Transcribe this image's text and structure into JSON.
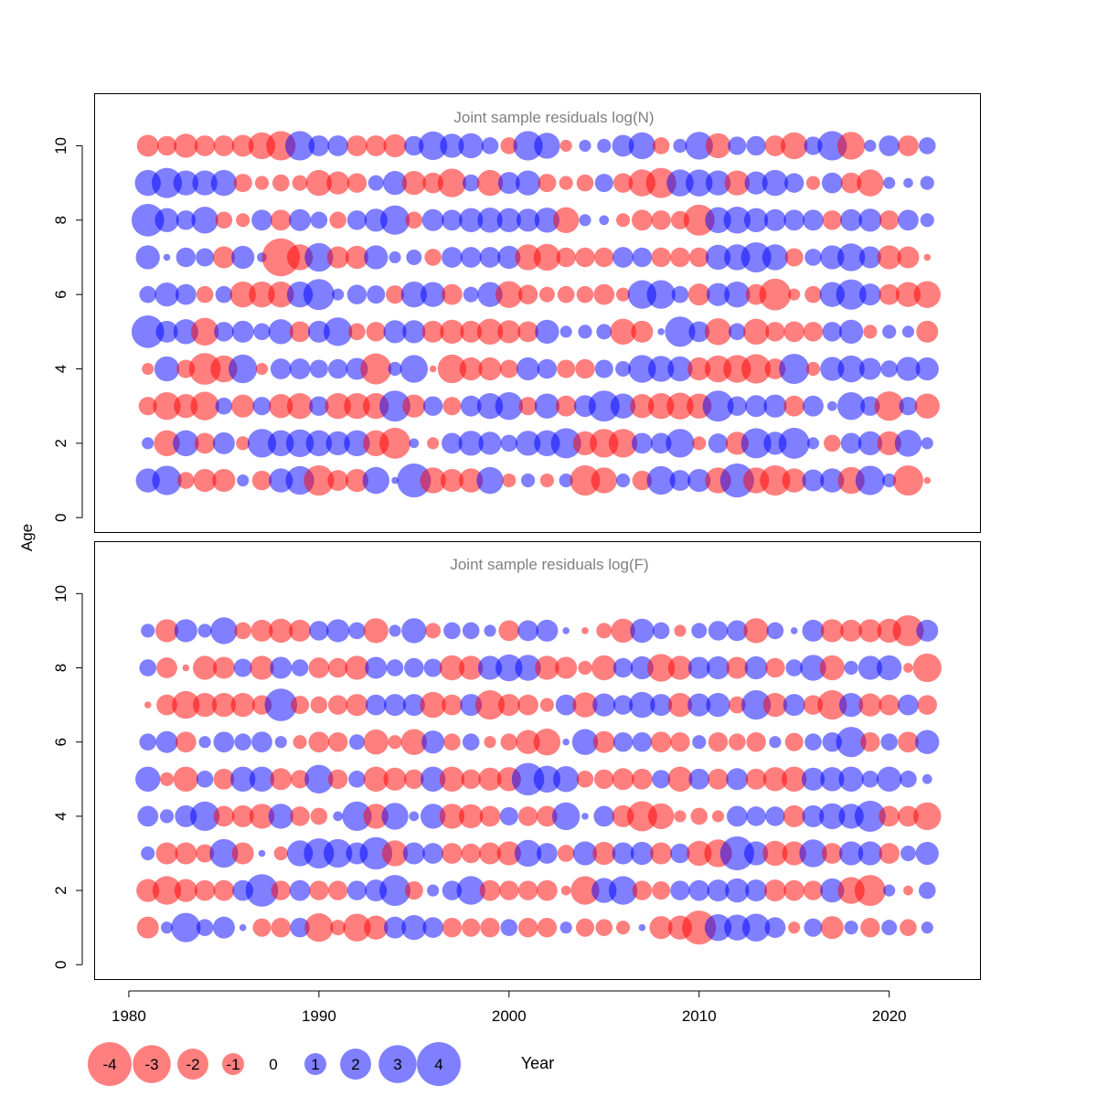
{
  "colors": {
    "positive": "#0000FF",
    "negative": "#FF0000",
    "bubble_alpha": 0.5,
    "panel_title": "#808080",
    "axis": "#000000"
  },
  "chart_data": [
    {
      "type": "scatter",
      "subtype": "bubble",
      "title": "Joint sample residuals log(N)",
      "xlabel": "Year",
      "ylabel": "Age",
      "xlim": [
        1978.2,
        2024.8
      ],
      "ylim": [
        -0.4,
        11.4
      ],
      "yticks": [
        0,
        2,
        4,
        6,
        8,
        10
      ],
      "years": [
        1981,
        1982,
        1983,
        1984,
        1985,
        1986,
        1987,
        1988,
        1989,
        1990,
        1991,
        1992,
        1993,
        1994,
        1995,
        1996,
        1997,
        1998,
        1999,
        2000,
        2001,
        2002,
        2003,
        2004,
        2005,
        2006,
        2007,
        2008,
        2009,
        2010,
        2011,
        2012,
        2013,
        2014,
        2015,
        2016,
        2017,
        2018,
        2019,
        2020,
        2021,
        2022
      ],
      "ages": [
        1,
        2,
        3,
        4,
        5,
        6,
        7,
        8,
        9,
        10
      ],
      "residuals_by_age": {
        "1": [
          1.2,
          1.8,
          -0.6,
          -1.1,
          -1.1,
          0.3,
          -0.8,
          1.2,
          1.7,
          -1.9,
          -0.9,
          -1.1,
          1.5,
          0.1,
          2.4,
          -1.4,
          -1.1,
          -1.2,
          1.5,
          -0.4,
          0.4,
          -0.4,
          0.4,
          -1.9,
          -1.4,
          0.4,
          -0.8,
          1.7,
          0.9,
          1.1,
          -1.4,
          2.4,
          -1.4,
          -1.9,
          -1.2,
          1.0,
          1.2,
          -1.5,
          1.8,
          0.4,
          -1.9,
          -0.1
        ],
        "2": [
          0.3,
          -1.4,
          1.4,
          -0.9,
          1.0,
          -0.4,
          1.7,
          1.4,
          1.6,
          1.4,
          1.2,
          1.4,
          -1.4,
          -2.0,
          0.2,
          -0.3,
          0.9,
          1.3,
          1.1,
          0.6,
          1.3,
          1.4,
          1.9,
          -1.2,
          -1.7,
          -1.7,
          0.9,
          0.9,
          1.7,
          -0.4,
          0.8,
          -1.1,
          1.9,
          1.1,
          2.0,
          0.3,
          -0.6,
          0.9,
          1.2,
          -1.2,
          1.5,
          0.3
        ],
        "3": [
          -0.7,
          -1.6,
          -1.2,
          -1.7,
          0.6,
          -1.1,
          0.7,
          -1.2,
          -1.4,
          0.8,
          -1.4,
          -1.4,
          -1.4,
          2.0,
          -1.1,
          0.8,
          -0.7,
          0.9,
          1.4,
          1.6,
          -0.7,
          1.3,
          -0.9,
          1.0,
          2.0,
          1.3,
          -1.2,
          -1.4,
          -1.5,
          -1.3,
          2.0,
          0.8,
          1.0,
          1.1,
          -0.9,
          0.9,
          0.2,
          1.6,
          0.8,
          -1.8,
          0.7,
          -1.3
        ],
        "4": [
          -0.3,
          1.3,
          -0.7,
          -2.1,
          -1.5,
          1.7,
          -0.3,
          0.9,
          0.9,
          0.7,
          0.8,
          1.0,
          -2.0,
          0.4,
          1.6,
          -0.1,
          -1.7,
          -1.1,
          -1.1,
          -0.7,
          1.1,
          0.8,
          -0.7,
          -0.8,
          0.7,
          0.5,
          1.6,
          1.4,
          1.3,
          -1.1,
          -1.5,
          -1.6,
          -1.8,
          -0.9,
          1.9,
          -0.4,
          1.2,
          1.5,
          1.0,
          0.6,
          1.2,
          1.1
        ],
        "5": [
          2.2,
          1.0,
          1.3,
          -1.6,
          0.8,
          1.0,
          0.6,
          1.3,
          -0.9,
          1.0,
          1.7,
          -0.6,
          -0.8,
          1.1,
          1.1,
          -1.0,
          -1.2,
          -1.0,
          -1.4,
          -1.1,
          -0.9,
          1.2,
          0.3,
          0.4,
          0.5,
          -1.4,
          -1.0,
          0.1,
          1.9,
          0.9,
          -1.5,
          0.6,
          -1.4,
          -0.8,
          -0.9,
          -0.8,
          0.8,
          1.2,
          -0.4,
          0.4,
          0.3,
          -1.0
        ],
        "6": [
          0.6,
          1.2,
          0.9,
          -0.6,
          0.6,
          -1.4,
          -1.4,
          -1.4,
          1.4,
          2.0,
          0.3,
          0.8,
          0.7,
          -0.7,
          1.4,
          1.3,
          -0.9,
          0.5,
          1.3,
          -1.5,
          -0.8,
          -0.5,
          -0.6,
          -0.6,
          -0.9,
          -0.4,
          1.7,
          1.7,
          0.6,
          -1.0,
          1.1,
          1.4,
          -0.9,
          -2.1,
          -0.3,
          -0.6,
          1.3,
          1.9,
          1.0,
          -0.9,
          -1.3,
          -1.5
        ],
        "7": [
          1.2,
          0.1,
          0.8,
          0.7,
          -1.0,
          1.1,
          0.2,
          -3.0,
          -1.4,
          1.7,
          -1.0,
          -1.1,
          1.2,
          0.3,
          0.5,
          -0.6,
          0.9,
          0.9,
          0.9,
          1.1,
          -1.4,
          -1.5,
          -0.8,
          -0.8,
          -0.8,
          0.9,
          0.8,
          -0.8,
          -0.8,
          -0.8,
          1.3,
          1.4,
          1.9,
          1.4,
          -0.7,
          0.6,
          1.2,
          1.6,
          1.0,
          -1.2,
          -1.0,
          -0.1
        ],
        "8": [
          2.2,
          1.2,
          0.8,
          1.5,
          -0.6,
          -0.4,
          0.9,
          -0.9,
          1.0,
          0.6,
          -0.6,
          0.8,
          1.1,
          1.8,
          -0.6,
          1.0,
          0.9,
          1.2,
          1.3,
          1.2,
          1.1,
          1.3,
          -1.4,
          0.3,
          0.2,
          -0.4,
          -0.9,
          -0.8,
          -0.7,
          -2.0,
          1.4,
          1.5,
          1.2,
          1.0,
          0.9,
          0.9,
          -0.8,
          1.0,
          1.1,
          -0.8,
          0.9,
          0.4
        ],
        "9": [
          1.4,
          1.9,
          1.3,
          1.3,
          1.4,
          -0.7,
          -0.4,
          -0.6,
          -0.5,
          -1.4,
          -1.1,
          -0.8,
          0.5,
          1.2,
          -1.2,
          -0.9,
          -1.7,
          0.6,
          -1.4,
          1.0,
          1.3,
          -0.7,
          -0.4,
          -0.6,
          0.7,
          -0.8,
          -1.5,
          -1.9,
          1.5,
          1.5,
          1.3,
          -1.3,
          1.1,
          1.4,
          0.8,
          -0.4,
          0.9,
          -0.9,
          -1.5,
          0.3,
          0.2,
          0.4
        ],
        "10": [
          -1.0,
          -0.8,
          -1.2,
          -0.9,
          -0.9,
          -1.0,
          -1.5,
          -1.8,
          1.8,
          0.9,
          0.9,
          -0.9,
          -0.9,
          -1.1,
          0.8,
          1.7,
          1.2,
          1.3,
          0.6,
          -0.6,
          1.8,
          1.4,
          -0.3,
          0.3,
          0.4,
          1.0,
          1.5,
          -0.6,
          0.4,
          1.6,
          -1.3,
          0.7,
          0.8,
          -0.9,
          -1.5,
          0.7,
          1.8,
          -1.6,
          0.3,
          0.9,
          -0.9,
          0.6
        ]
      }
    },
    {
      "type": "scatter",
      "subtype": "bubble",
      "title": "Joint sample residuals log(F)",
      "xlabel": "Year",
      "ylabel": "Age",
      "xlim": [
        1978.2,
        2024.8
      ],
      "ylim": [
        -0.4,
        11.4
      ],
      "yticks": [
        0,
        2,
        4,
        6,
        8,
        10
      ],
      "xticks": [
        1980,
        1990,
        2000,
        2010,
        2020
      ],
      "years": [
        1981,
        1982,
        1983,
        1984,
        1985,
        1986,
        1987,
        1988,
        1989,
        1990,
        1991,
        1992,
        1993,
        1994,
        1995,
        1996,
        1997,
        1998,
        1999,
        2000,
        2001,
        2002,
        2003,
        2004,
        2005,
        2006,
        2007,
        2008,
        2009,
        2010,
        2011,
        2012,
        2013,
        2014,
        2015,
        2016,
        2017,
        2018,
        2019,
        2020,
        2021,
        2022
      ],
      "ages": [
        1,
        2,
        3,
        4,
        5,
        6,
        7,
        8,
        9
      ],
      "residuals_by_age": {
        "1": [
          -1.0,
          0.3,
          1.8,
          0.6,
          1.0,
          0.1,
          -0.7,
          -0.8,
          0.8,
          -1.7,
          -0.5,
          -1.6,
          -1.2,
          1.0,
          1.3,
          0.9,
          -0.8,
          -0.7,
          -0.8,
          0.6,
          -0.8,
          -0.8,
          0.3,
          -0.7,
          -0.6,
          -0.4,
          0.1,
          -1.1,
          -1.2,
          -2.4,
          1.5,
          1.4,
          1.6,
          0.9,
          -0.3,
          0.7,
          -1.1,
          0.4,
          -0.8,
          0.5,
          -0.6,
          0.3
        ],
        "2": [
          -1.1,
          -1.7,
          -1.1,
          -0.9,
          -0.9,
          0.9,
          2.2,
          -0.8,
          0.9,
          -0.8,
          -0.8,
          0.8,
          1.0,
          2.0,
          -0.7,
          0.3,
          0.8,
          1.7,
          -0.9,
          -0.8,
          -0.8,
          -0.9,
          -0.2,
          -1.7,
          1.3,
          1.7,
          -0.8,
          -0.7,
          0.8,
          0.9,
          1.0,
          1.2,
          1.0,
          -1.0,
          -0.9,
          -0.8,
          1.2,
          -1.5,
          -2.0,
          0.3,
          -0.2,
          0.6
        ],
        "3": [
          0.4,
          -1.0,
          -1.0,
          -0.7,
          1.7,
          -1.0,
          0.1,
          -0.4,
          1.4,
          1.9,
          1.7,
          1.0,
          2.2,
          -1.4,
          1.0,
          0.9,
          -0.9,
          -0.8,
          -1.0,
          -1.2,
          1.5,
          0.9,
          -0.6,
          1.2,
          -1.1,
          1.0,
          1.1,
          -1.0,
          0.8,
          -1.3,
          -1.6,
          2.4,
          1.2,
          -1.3,
          -1.2,
          1.6,
          -0.9,
          1.2,
          1.2,
          -0.9,
          0.5,
          1.1
        ],
        "4": [
          0.9,
          0.4,
          1.0,
          1.8,
          -0.9,
          -1.0,
          -1.3,
          1.3,
          -0.8,
          -0.6,
          0.2,
          1.8,
          -1.3,
          1.5,
          0.2,
          1.3,
          -1.3,
          -1.2,
          -0.9,
          0.7,
          -0.8,
          -0.9,
          1.6,
          0.1,
          0.9,
          -1.0,
          -1.9,
          -1.4,
          -0.3,
          -0.6,
          -0.3,
          0.9,
          0.8,
          0.8,
          -1.0,
          1.0,
          1.4,
          1.3,
          2.0,
          -0.9,
          -0.9,
          -1.6
        ],
        "5": [
          1.3,
          -0.4,
          -1.3,
          0.6,
          -0.9,
          1.3,
          1.3,
          -1.0,
          -0.7,
          1.7,
          -0.8,
          0.6,
          -1.3,
          -1.1,
          -0.8,
          1.3,
          -1.3,
          -0.8,
          -1.1,
          -1.2,
          2.2,
          1.5,
          1.4,
          -0.6,
          -0.8,
          -1.0,
          -0.9,
          0.7,
          -1.3,
          0.9,
          -0.9,
          1.0,
          -0.9,
          -1.2,
          -1.3,
          1.1,
          1.2,
          1.3,
          0.6,
          1.3,
          0.6,
          0.2
        ],
        "6": [
          0.6,
          1.0,
          -0.9,
          0.3,
          0.9,
          0.6,
          0.9,
          0.3,
          -0.4,
          -0.9,
          -0.8,
          0.5,
          -1.3,
          -0.4,
          -1.4,
          1.1,
          -0.6,
          0.6,
          -0.3,
          -0.6,
          -1.2,
          -1.5,
          0.1,
          1.4,
          -1.0,
          0.8,
          0.8,
          -0.9,
          -0.8,
          0.4,
          -0.8,
          -0.6,
          -0.8,
          0.3,
          -0.7,
          0.6,
          0.8,
          1.9,
          -0.8,
          0.6,
          -0.9,
          1.2
        ],
        "7": [
          -0.1,
          -0.9,
          -1.6,
          -1.2,
          -1.2,
          -1.2,
          -0.8,
          2.2,
          -0.7,
          -0.6,
          -0.8,
          -1.0,
          0.9,
          1.0,
          1.0,
          -1.4,
          -0.9,
          1.0,
          -1.8,
          -1.0,
          -0.9,
          -0.4,
          0.9,
          -1.3,
          1.1,
          0.8,
          1.4,
          1.0,
          -1.2,
          1.1,
          1.2,
          -0.6,
          1.8,
          -1.2,
          1.0,
          -0.8,
          -1.8,
          1.2,
          -1.1,
          -0.9,
          0.9,
          -0.8
        ],
        "8": [
          0.6,
          -0.9,
          -0.1,
          -1.2,
          -1.0,
          0.7,
          -1.2,
          1.0,
          0.6,
          -0.9,
          -0.8,
          -1.2,
          1.0,
          0.6,
          0.8,
          0.7,
          -1.3,
          -1.2,
          1.2,
          1.5,
          1.4,
          -1.2,
          -1.0,
          -0.4,
          -1.3,
          0.8,
          1.1,
          -1.6,
          -1.2,
          1.0,
          1.1,
          -1.0,
          1.1,
          -0.8,
          0.6,
          1.4,
          -1.3,
          0.4,
          1.2,
          1.3,
          -0.2,
          -1.7
        ],
        "9": [
          0.4,
          -1.1,
          1.1,
          0.4,
          1.5,
          -0.6,
          -1.0,
          -1.2,
          -1.0,
          0.8,
          1.1,
          0.6,
          -1.3,
          0.3,
          1.3,
          -0.5,
          0.6,
          0.6,
          0.3,
          -0.9,
          0.9,
          1.0,
          0.1,
          -0.1,
          -0.5,
          -1.2,
          1.2,
          0.6,
          -0.3,
          0.5,
          0.8,
          0.9,
          -1.3,
          0.6,
          0.1,
          1.0,
          -1.1,
          -1.0,
          -1.1,
          -1.2,
          -2.0,
          1.0
        ]
      }
    }
  ],
  "legend": {
    "entries": [
      {
        "value": -4,
        "label": "-4"
      },
      {
        "value": -3,
        "label": "-3"
      },
      {
        "value": -2,
        "label": "-2"
      },
      {
        "value": -1,
        "label": "-1"
      },
      {
        "value": 0,
        "label": "0"
      },
      {
        "value": 1,
        "label": "1"
      },
      {
        "value": 2,
        "label": "2"
      },
      {
        "value": 3,
        "label": "3"
      },
      {
        "value": 4,
        "label": "4"
      }
    ]
  },
  "axis_text": {
    "xlabel": "Year",
    "ylabel": "Age",
    "xtick_labels": [
      "1980",
      "1990",
      "2000",
      "2010",
      "2020"
    ],
    "ytick_labels": [
      "0",
      "2",
      "4",
      "6",
      "8",
      "10"
    ]
  }
}
